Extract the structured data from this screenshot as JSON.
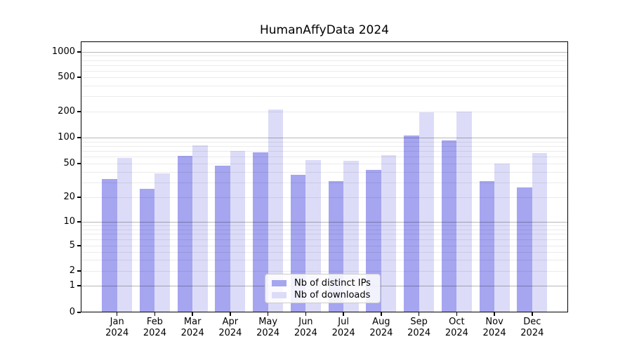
{
  "chart_data": {
    "type": "bar",
    "title": "HumanAffyData 2024",
    "categories": [
      "Jan",
      "Feb",
      "Mar",
      "Apr",
      "May",
      "Jun",
      "Jul",
      "Aug",
      "Sep",
      "Oct",
      "Nov",
      "Dec"
    ],
    "category_year_line": "2024",
    "series": [
      {
        "name": "Nb of distinct IPs",
        "color": "#a5a5f0",
        "values": [
          33,
          25,
          62,
          47,
          68,
          37,
          31,
          42,
          105,
          92,
          31,
          26
        ]
      },
      {
        "name": "Nb of downloads",
        "color": "#dcdcf8",
        "values": [
          58,
          38,
          82,
          70,
          210,
          55,
          54,
          63,
          196,
          200,
          50,
          66
        ]
      }
    ],
    "xlabel": "",
    "ylabel": "",
    "yscale": "log-with-zero",
    "ylim": [
      0,
      1200
    ],
    "yticks": [
      0,
      1,
      2,
      5,
      10,
      20,
      50,
      100,
      200,
      500,
      1000
    ],
    "major_gridlines": [
      1,
      10,
      100,
      1000
    ],
    "minor_gridlines": [
      2,
      3,
      4,
      5,
      6,
      7,
      8,
      9,
      20,
      30,
      40,
      50,
      60,
      70,
      80,
      90,
      200,
      300,
      400,
      500,
      600,
      700,
      800,
      900
    ],
    "grid": true,
    "legend_position": "lower center",
    "axis_color": "#000000",
    "background_color": "#ffffff"
  }
}
